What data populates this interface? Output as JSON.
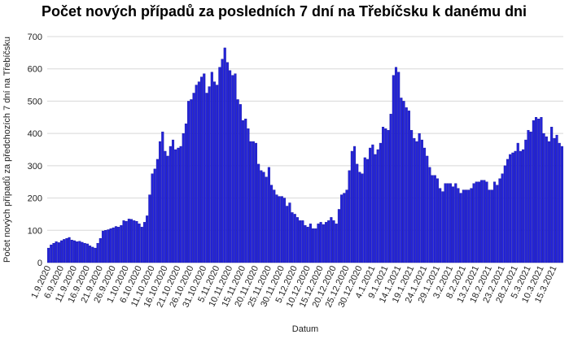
{
  "chart_data": {
    "type": "bar",
    "title": "Počet nových případů za posledních 7 dní na Třebíčsku k danému dni",
    "x_label": "Datum",
    "y_label": "Počet nových případů za předchozích 7 dní na Třebíčsku",
    "color": "#2424d8",
    "grid": true,
    "ylim": [
      0,
      700
    ],
    "yticks": [
      0,
      100,
      200,
      300,
      400,
      500,
      600,
      700
    ],
    "categories": [
      "1.9.2020",
      null,
      null,
      null,
      null,
      "6.9.2020",
      null,
      null,
      null,
      null,
      "11.9.2020",
      null,
      null,
      null,
      null,
      "16.9.2020",
      null,
      null,
      null,
      null,
      "21.9.2020",
      null,
      null,
      null,
      null,
      "26.9.2020",
      null,
      null,
      null,
      null,
      "1.10.2020",
      null,
      null,
      null,
      null,
      "6.10.2020",
      null,
      null,
      null,
      null,
      "11.10.2020",
      null,
      null,
      null,
      null,
      "16.10.2020",
      null,
      null,
      null,
      null,
      "21.10.2020",
      null,
      null,
      null,
      null,
      "26.10.2020",
      null,
      null,
      null,
      null,
      "31.10.2020",
      null,
      null,
      null,
      null,
      "5.11.2020",
      null,
      null,
      null,
      null,
      "10.11.2020",
      null,
      null,
      null,
      null,
      "15.11.2020",
      null,
      null,
      null,
      null,
      "20.11.2020",
      null,
      null,
      null,
      null,
      "25.11.2020",
      null,
      null,
      null,
      null,
      "30.11.2020",
      null,
      null,
      null,
      null,
      "5.12.2020",
      null,
      null,
      null,
      null,
      "10.12.2020",
      null,
      null,
      null,
      null,
      "15.12.2020",
      null,
      null,
      null,
      null,
      "20.12.2020",
      null,
      null,
      null,
      null,
      "25.12.2020",
      null,
      null,
      null,
      null,
      "30.12.2020",
      null,
      null,
      null,
      null,
      "4.1.2021",
      null,
      null,
      null,
      null,
      "9.1.2021",
      null,
      null,
      null,
      null,
      "14.1.2021",
      null,
      null,
      null,
      null,
      "19.1.2021",
      null,
      null,
      null,
      null,
      "24.1.2021",
      null,
      null,
      null,
      null,
      "29.1.2021",
      null,
      null,
      null,
      null,
      "3.2.2021",
      null,
      null,
      null,
      null,
      "8.2.2021",
      null,
      null,
      null,
      null,
      "13.2.2021",
      null,
      null,
      null,
      null,
      "18.2.2021",
      null,
      null,
      null,
      null,
      "23.2.2021",
      null,
      null,
      null,
      null,
      "28.2.2021",
      null,
      null,
      null,
      null,
      "5.3.2021",
      null,
      null,
      null,
      null,
      "10.3.2021",
      null,
      null,
      null,
      null,
      "15.3.2021",
      null,
      null,
      null
    ],
    "values": [
      45,
      55,
      60,
      65,
      62,
      68,
      72,
      75,
      78,
      70,
      68,
      65,
      66,
      63,
      60,
      58,
      52,
      48,
      45,
      60,
      75,
      98,
      100,
      102,
      105,
      108,
      112,
      110,
      115,
      130,
      128,
      135,
      134,
      130,
      128,
      120,
      110,
      125,
      145,
      210,
      275,
      290,
      320,
      375,
      405,
      345,
      330,
      360,
      380,
      350,
      355,
      360,
      400,
      430,
      500,
      505,
      525,
      550,
      560,
      575,
      585,
      525,
      545,
      590,
      560,
      550,
      605,
      630,
      665,
      620,
      595,
      580,
      585,
      505,
      490,
      440,
      445,
      415,
      375,
      375,
      370,
      305,
      285,
      280,
      265,
      295,
      240,
      225,
      210,
      205,
      205,
      200,
      175,
      185,
      155,
      150,
      140,
      130,
      130,
      115,
      110,
      120,
      105,
      105,
      120,
      125,
      118,
      125,
      130,
      140,
      130,
      120,
      165,
      210,
      215,
      225,
      285,
      345,
      360,
      305,
      280,
      275,
      325,
      320,
      355,
      365,
      335,
      350,
      370,
      420,
      415,
      410,
      460,
      580,
      605,
      590,
      510,
      500,
      480,
      470,
      410,
      385,
      375,
      400,
      380,
      355,
      330,
      295,
      270,
      270,
      260,
      230,
      220,
      245,
      245,
      245,
      235,
      245,
      230,
      215,
      225,
      225,
      225,
      230,
      245,
      250,
      250,
      255,
      255,
      250,
      225,
      225,
      250,
      240,
      260,
      275,
      300,
      320,
      335,
      340,
      345,
      370,
      345,
      350,
      380,
      410,
      405,
      440,
      450,
      445,
      450,
      400,
      390,
      375,
      420,
      385,
      395,
      370,
      360
    ]
  }
}
